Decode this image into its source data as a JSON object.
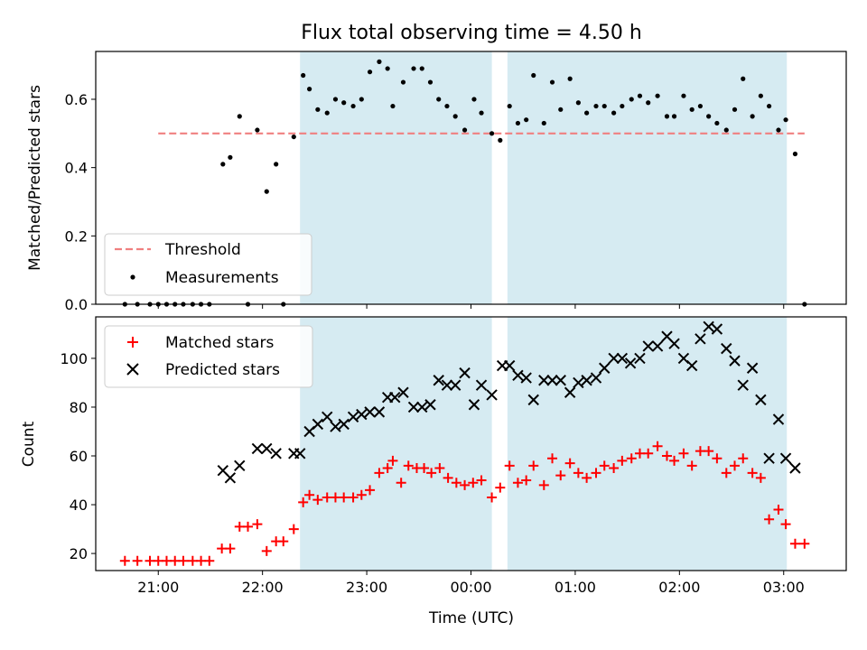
{
  "chart_data": {
    "title": "Flux total observing time = 4.50 h",
    "xlabel": "Time (UTC)",
    "xrange_hours": [
      20.4,
      27.6
    ],
    "xticks": [
      {
        "value": 21,
        "label": "21:00"
      },
      {
        "value": 22,
        "label": "22:00"
      },
      {
        "value": 23,
        "label": "23:00"
      },
      {
        "value": 24,
        "label": "00:00"
      },
      {
        "value": 25,
        "label": "01:00"
      },
      {
        "value": 26,
        "label": "02:00"
      },
      {
        "value": 27,
        "label": "03:00"
      }
    ],
    "shaded_intervals_hours": [
      [
        22.36,
        24.2
      ],
      [
        24.35,
        27.03
      ]
    ],
    "shade_color": "#add8e6",
    "panels": [
      {
        "type": "scatter",
        "ylabel": "Matched/Predicted stars",
        "ylim": [
          0,
          0.74
        ],
        "yticks": [
          0.0,
          0.2,
          0.4,
          0.6
        ],
        "legend_position": "lower-left",
        "threshold": {
          "name": "Threshold",
          "value": 0.5,
          "x_range": [
            21.0,
            27.2
          ],
          "color": "#f08080"
        },
        "series": [
          {
            "name": "Measurements",
            "marker": "dot",
            "color": "#000000",
            "points": [
              [
                20.68,
                0
              ],
              [
                20.8,
                0
              ],
              [
                20.92,
                0
              ],
              [
                21.0,
                0
              ],
              [
                21.08,
                0
              ],
              [
                21.16,
                0
              ],
              [
                21.24,
                0
              ],
              [
                21.33,
                0
              ],
              [
                21.41,
                0
              ],
              [
                21.49,
                0
              ],
              [
                21.62,
                0.41
              ],
              [
                21.69,
                0.43
              ],
              [
                21.78,
                0.55
              ],
              [
                21.86,
                0
              ],
              [
                21.95,
                0.51
              ],
              [
                22.04,
                0.33
              ],
              [
                22.13,
                0.41
              ],
              [
                22.2,
                0
              ],
              [
                22.3,
                0.49
              ],
              [
                22.39,
                0.67
              ],
              [
                22.45,
                0.63
              ],
              [
                22.53,
                0.57
              ],
              [
                22.62,
                0.56
              ],
              [
                22.7,
                0.6
              ],
              [
                22.78,
                0.59
              ],
              [
                22.87,
                0.58
              ],
              [
                22.95,
                0.6
              ],
              [
                23.03,
                0.68
              ],
              [
                23.12,
                0.71
              ],
              [
                23.2,
                0.69
              ],
              [
                23.25,
                0.58
              ],
              [
                23.35,
                0.65
              ],
              [
                23.45,
                0.69
              ],
              [
                23.53,
                0.69
              ],
              [
                23.61,
                0.65
              ],
              [
                23.69,
                0.6
              ],
              [
                23.77,
                0.58
              ],
              [
                23.85,
                0.55
              ],
              [
                23.94,
                0.51
              ],
              [
                24.03,
                0.6
              ],
              [
                24.1,
                0.56
              ],
              [
                24.2,
                0.5
              ],
              [
                24.28,
                0.48
              ],
              [
                24.37,
                0.58
              ],
              [
                24.45,
                0.53
              ],
              [
                24.53,
                0.54
              ],
              [
                24.6,
                0.67
              ],
              [
                24.7,
                0.53
              ],
              [
                24.78,
                0.65
              ],
              [
                24.86,
                0.57
              ],
              [
                24.95,
                0.66
              ],
              [
                25.03,
                0.59
              ],
              [
                25.11,
                0.56
              ],
              [
                25.2,
                0.58
              ],
              [
                25.28,
                0.58
              ],
              [
                25.37,
                0.56
              ],
              [
                25.45,
                0.58
              ],
              [
                25.54,
                0.6
              ],
              [
                25.62,
                0.61
              ],
              [
                25.7,
                0.59
              ],
              [
                25.79,
                0.61
              ],
              [
                25.88,
                0.55
              ],
              [
                25.95,
                0.55
              ],
              [
                26.04,
                0.61
              ],
              [
                26.12,
                0.57
              ],
              [
                26.2,
                0.58
              ],
              [
                26.28,
                0.55
              ],
              [
                26.36,
                0.53
              ],
              [
                26.45,
                0.51
              ],
              [
                26.53,
                0.57
              ],
              [
                26.61,
                0.66
              ],
              [
                26.7,
                0.55
              ],
              [
                26.78,
                0.61
              ],
              [
                26.86,
                0.58
              ],
              [
                26.95,
                0.51
              ],
              [
                27.02,
                0.54
              ],
              [
                27.11,
                0.44
              ],
              [
                27.2,
                0
              ]
            ]
          }
        ]
      },
      {
        "type": "scatter",
        "ylabel": "Count",
        "ylim": [
          13,
          117
        ],
        "yticks": [
          20,
          40,
          60,
          80,
          100
        ],
        "legend_position": "upper-left",
        "series": [
          {
            "name": "Matched stars",
            "marker": "plus",
            "color": "#ff0000",
            "points": [
              [
                20.68,
                17
              ],
              [
                20.8,
                17
              ],
              [
                20.92,
                17
              ],
              [
                21.0,
                17
              ],
              [
                21.08,
                17
              ],
              [
                21.16,
                17
              ],
              [
                21.24,
                17
              ],
              [
                21.33,
                17
              ],
              [
                21.41,
                17
              ],
              [
                21.49,
                17
              ],
              [
                21.61,
                22
              ],
              [
                21.69,
                22
              ],
              [
                21.78,
                31
              ],
              [
                21.86,
                31
              ],
              [
                21.95,
                32
              ],
              [
                22.04,
                21
              ],
              [
                22.13,
                25
              ],
              [
                22.2,
                25
              ],
              [
                22.3,
                30
              ],
              [
                22.39,
                41
              ],
              [
                22.45,
                44
              ],
              [
                22.53,
                42
              ],
              [
                22.62,
                43
              ],
              [
                22.7,
                43
              ],
              [
                22.78,
                43
              ],
              [
                22.87,
                43
              ],
              [
                22.95,
                44
              ],
              [
                23.03,
                46
              ],
              [
                23.12,
                53
              ],
              [
                23.2,
                55
              ],
              [
                23.25,
                58
              ],
              [
                23.33,
                49
              ],
              [
                23.4,
                56
              ],
              [
                23.48,
                55
              ],
              [
                23.55,
                55
              ],
              [
                23.62,
                53
              ],
              [
                23.7,
                55
              ],
              [
                23.78,
                51
              ],
              [
                23.86,
                49
              ],
              [
                23.94,
                48
              ],
              [
                24.02,
                49
              ],
              [
                24.1,
                50
              ],
              [
                24.2,
                43
              ],
              [
                24.28,
                47
              ],
              [
                24.37,
                56
              ],
              [
                24.45,
                49
              ],
              [
                24.53,
                50
              ],
              [
                24.6,
                56
              ],
              [
                24.7,
                48
              ],
              [
                24.78,
                59
              ],
              [
                24.86,
                52
              ],
              [
                24.95,
                57
              ],
              [
                25.03,
                53
              ],
              [
                25.11,
                51
              ],
              [
                25.2,
                53
              ],
              [
                25.28,
                56
              ],
              [
                25.37,
                55
              ],
              [
                25.45,
                58
              ],
              [
                25.54,
                59
              ],
              [
                25.62,
                61
              ],
              [
                25.7,
                61
              ],
              [
                25.79,
                64
              ],
              [
                25.88,
                60
              ],
              [
                25.95,
                58
              ],
              [
                26.04,
                61
              ],
              [
                26.12,
                56
              ],
              [
                26.2,
                62
              ],
              [
                26.28,
                62
              ],
              [
                26.36,
                59
              ],
              [
                26.45,
                53
              ],
              [
                26.53,
                56
              ],
              [
                26.61,
                59
              ],
              [
                26.7,
                53
              ],
              [
                26.78,
                51
              ],
              [
                26.86,
                34
              ],
              [
                26.95,
                38
              ],
              [
                27.02,
                32
              ],
              [
                27.11,
                24
              ],
              [
                27.2,
                24
              ]
            ]
          },
          {
            "name": "Predicted stars",
            "marker": "x",
            "color": "#000000",
            "points": [
              [
                21.62,
                54
              ],
              [
                21.69,
                51
              ],
              [
                21.78,
                56
              ],
              [
                21.95,
                63
              ],
              [
                22.04,
                63
              ],
              [
                22.13,
                61
              ],
              [
                22.3,
                61
              ],
              [
                22.36,
                61
              ],
              [
                22.45,
                70
              ],
              [
                22.53,
                73
              ],
              [
                22.62,
                76
              ],
              [
                22.7,
                72
              ],
              [
                22.78,
                73
              ],
              [
                22.87,
                76
              ],
              [
                22.95,
                77
              ],
              [
                23.03,
                78
              ],
              [
                23.12,
                78
              ],
              [
                23.2,
                84
              ],
              [
                23.27,
                84
              ],
              [
                23.35,
                86
              ],
              [
                23.45,
                80
              ],
              [
                23.53,
                80
              ],
              [
                23.61,
                81
              ],
              [
                23.69,
                91
              ],
              [
                23.77,
                89
              ],
              [
                23.85,
                89
              ],
              [
                23.94,
                94
              ],
              [
                24.03,
                81
              ],
              [
                24.1,
                89
              ],
              [
                24.2,
                85
              ],
              [
                24.3,
                97
              ],
              [
                24.37,
                97
              ],
              [
                24.45,
                93
              ],
              [
                24.53,
                92
              ],
              [
                24.6,
                83
              ],
              [
                24.7,
                91
              ],
              [
                24.78,
                91
              ],
              [
                24.86,
                91
              ],
              [
                24.95,
                86
              ],
              [
                25.03,
                90
              ],
              [
                25.11,
                91
              ],
              [
                25.2,
                92
              ],
              [
                25.28,
                96
              ],
              [
                25.37,
                100
              ],
              [
                25.45,
                100
              ],
              [
                25.53,
                98
              ],
              [
                25.62,
                100
              ],
              [
                25.7,
                105
              ],
              [
                25.79,
                105
              ],
              [
                25.88,
                109
              ],
              [
                25.95,
                106
              ],
              [
                26.04,
                100
              ],
              [
                26.12,
                97
              ],
              [
                26.2,
                108
              ],
              [
                26.28,
                113
              ],
              [
                26.36,
                112
              ],
              [
                26.45,
                104
              ],
              [
                26.53,
                99
              ],
              [
                26.61,
                89
              ],
              [
                26.7,
                96
              ],
              [
                26.78,
                83
              ],
              [
                26.86,
                59
              ],
              [
                26.95,
                75
              ],
              [
                27.02,
                59
              ],
              [
                27.11,
                55
              ]
            ]
          }
        ]
      }
    ]
  }
}
